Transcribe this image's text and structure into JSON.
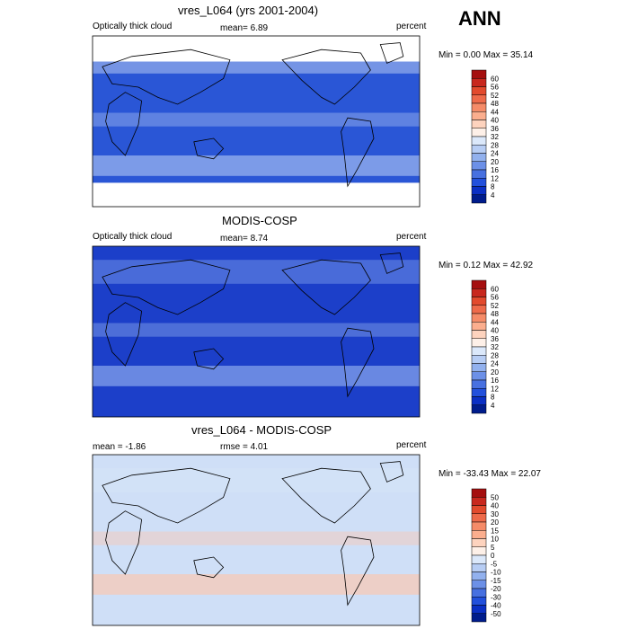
{
  "season": "ANN",
  "panels": [
    {
      "title": "vres_L064 (yrs 2001-2004)",
      "left_label": "Optically thick cloud",
      "mean_text": "mean=  6.89",
      "right_label": "percent",
      "minmax_text": "Min =  0.00 Max =  35.14",
      "colorbar": {
        "levels": [
          "60",
          "56",
          "52",
          "48",
          "44",
          "40",
          "36",
          "32",
          "28",
          "24",
          "20",
          "16",
          "12",
          "8",
          "4"
        ],
        "colors": [
          "#a50f0f",
          "#c8281e",
          "#e24a2d",
          "#ee6a4a",
          "#f58b68",
          "#fbae8e",
          "#fdd3be",
          "#fdf0e8",
          "#dbe8fa",
          "#b7cdf4",
          "#92b1ee",
          "#6c90e7",
          "#4770e0",
          "#2250dc",
          "#0a2fc4",
          "#001c8c"
        ]
      },
      "map": {
        "fill_top": "#b3c8f2",
        "fill_ocean": "#2a56d6",
        "band": "#9fb9ef",
        "missing_polar": true
      }
    },
    {
      "title": "MODIS-COSP",
      "left_label": "Optically thick cloud",
      "mean_text": "mean=  8.74",
      "right_label": "percent",
      "minmax_text": "Min =  0.12 Max =  42.92",
      "colorbar": {
        "levels": [
          "60",
          "56",
          "52",
          "48",
          "44",
          "40",
          "36",
          "32",
          "28",
          "24",
          "20",
          "16",
          "12",
          "8",
          "4"
        ],
        "colors": [
          "#a50f0f",
          "#c8281e",
          "#e24a2d",
          "#ee6a4a",
          "#f58b68",
          "#fbae8e",
          "#fdd3be",
          "#fdf0e8",
          "#dbe8fa",
          "#b7cdf4",
          "#92b1ee",
          "#6c90e7",
          "#4770e0",
          "#2250dc",
          "#0a2fc4",
          "#001c8c"
        ]
      },
      "map": {
        "fill_top": "#6f90e6",
        "fill_ocean": "#1c3fc9",
        "band": "#8aa8ec",
        "missing_polar": false
      }
    },
    {
      "title": "vres_L064 - MODIS-COSP",
      "left_label": "mean =  -1.86",
      "mean_text": "rmse =   4.01",
      "right_label": "percent",
      "minmax_text": "Min = -33.43 Max =  22.07",
      "colorbar": {
        "levels": [
          "50",
          "40",
          "30",
          "20",
          "15",
          "10",
          "5",
          "0",
          "-5",
          "-10",
          "-15",
          "-20",
          "-30",
          "-40",
          "-50"
        ],
        "colors": [
          "#a50f0f",
          "#c8281e",
          "#e24a2d",
          "#ee6a4a",
          "#f58b68",
          "#fbae8e",
          "#fdd3be",
          "#fdf0e8",
          "#dbe8fa",
          "#b7cdf4",
          "#92b1ee",
          "#6c90e7",
          "#4770e0",
          "#2250dc",
          "#0a2fc4",
          "#001c8c"
        ]
      },
      "map": {
        "fill_top": "#d6e3f8",
        "fill_ocean": "#cfdff7",
        "band": "#f9c8b2",
        "missing_polar": false
      }
    }
  ]
}
